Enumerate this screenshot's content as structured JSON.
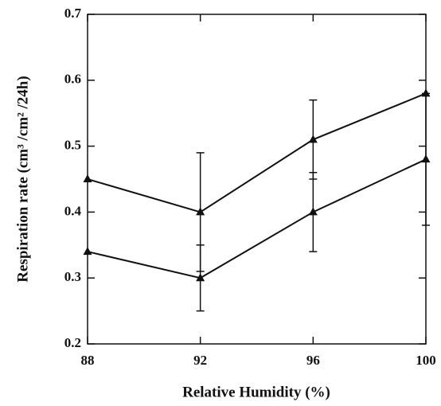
{
  "chart_data": {
    "type": "line",
    "xlabel": "Relative Humidity (%)",
    "ylabel": "Respiration rate (cm³ /cm² /24h)",
    "x": [
      88,
      92,
      96,
      100
    ],
    "series": [
      {
        "color": "#111111",
        "values": [
          0.45,
          0.4,
          0.51,
          0.58
        ],
        "errors": [
          null,
          0.09,
          0.06,
          null
        ]
      },
      {
        "color": "#111111",
        "values": [
          0.34,
          0.3,
          0.4,
          0.48
        ],
        "errors": [
          null,
          0.05,
          0.06,
          0.1
        ]
      }
    ],
    "xlim": [
      88,
      100
    ],
    "xticks": [
      88,
      92,
      96,
      100
    ],
    "ylim": [
      0.2,
      0.7
    ],
    "yticks": [
      0.2,
      0.3,
      0.4,
      0.5,
      0.6,
      0.7
    ],
    "grid": false
  }
}
